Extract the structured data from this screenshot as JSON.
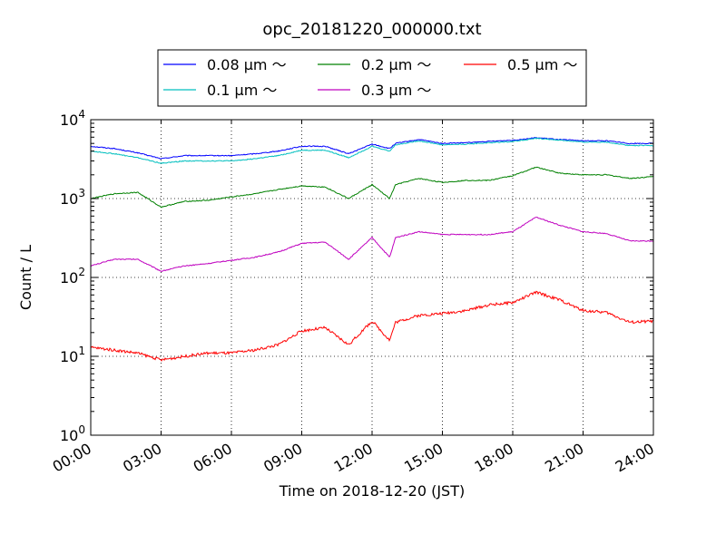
{
  "chart_data": {
    "type": "line",
    "title": "opc_20181220_000000.txt",
    "xlabel": "Time on 2018-12-20 (JST)",
    "ylabel": "Count / L",
    "yscale": "log",
    "ylim": [
      1,
      10000
    ],
    "xlim": [
      "00:00",
      "24:00"
    ],
    "grid": true,
    "legend_position": "top-center",
    "x_ticks": [
      "00:00",
      "03:00",
      "06:00",
      "09:00",
      "12:00",
      "15:00",
      "18:00",
      "21:00",
      "24:00"
    ],
    "y_ticks": [
      {
        "base": "10",
        "exp": "0"
      },
      {
        "base": "10",
        "exp": "1"
      },
      {
        "base": "10",
        "exp": "2"
      },
      {
        "base": "10",
        "exp": "3"
      },
      {
        "base": "10",
        "exp": "4"
      }
    ],
    "x": [
      "00:00",
      "01:00",
      "02:00",
      "03:00",
      "04:00",
      "05:00",
      "06:00",
      "07:00",
      "08:00",
      "09:00",
      "10:00",
      "11:00",
      "12:00",
      "12:45",
      "13:00",
      "14:00",
      "15:00",
      "16:00",
      "17:00",
      "18:00",
      "19:00",
      "20:00",
      "21:00",
      "22:00",
      "23:00",
      "24:00"
    ],
    "series": [
      {
        "name": "0.08 μm ～",
        "color": "#0000ff",
        "values": [
          4600,
          4300,
          3800,
          3200,
          3500,
          3500,
          3500,
          3700,
          4000,
          4600,
          4600,
          3700,
          4900,
          4300,
          5000,
          5600,
          5000,
          5100,
          5300,
          5500,
          5900,
          5600,
          5400,
          5400,
          5000,
          5000
        ]
      },
      {
        "name": "0.1 μm ～",
        "color": "#00bfbf",
        "values": [
          4000,
          3700,
          3300,
          2800,
          3000,
          3000,
          3000,
          3200,
          3500,
          4100,
          4100,
          3300,
          4600,
          4000,
          4800,
          5400,
          4800,
          4900,
          5100,
          5300,
          5800,
          5500,
          5200,
          5200,
          4700,
          4700
        ]
      },
      {
        "name": "0.2 μm ～",
        "color": "#008000",
        "values": [
          1000,
          1150,
          1200,
          780,
          920,
          950,
          1050,
          1150,
          1300,
          1450,
          1400,
          1000,
          1500,
          1000,
          1500,
          1800,
          1600,
          1700,
          1700,
          1950,
          2500,
          2100,
          2000,
          2000,
          1800,
          1900
        ]
      },
      {
        "name": "0.3 μm ～",
        "color": "#bf00bf",
        "values": [
          140,
          170,
          170,
          120,
          140,
          150,
          165,
          180,
          210,
          270,
          280,
          170,
          320,
          180,
          320,
          380,
          350,
          350,
          350,
          380,
          580,
          460,
          380,
          360,
          290,
          290
        ]
      },
      {
        "name": "0.5 μm ～",
        "color": "#ff0000",
        "values": [
          13,
          12,
          11,
          9,
          10,
          11,
          11,
          12,
          14,
          21,
          23,
          14,
          28,
          16,
          27,
          33,
          35,
          38,
          45,
          48,
          65,
          52,
          38,
          36,
          27,
          28
        ]
      }
    ]
  }
}
